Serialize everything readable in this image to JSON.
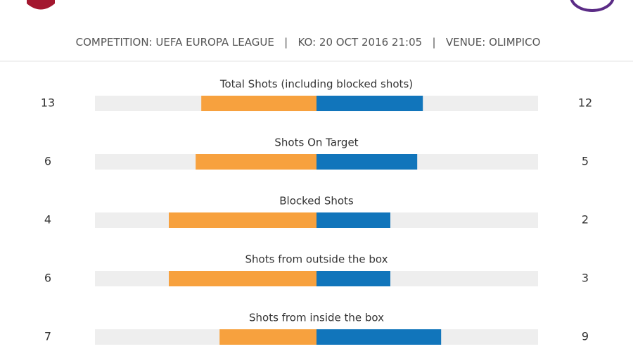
{
  "header": {
    "items": [
      {
        "label": "COMPETITION:",
        "value": "UEFA EUROPA LEAGUE"
      },
      {
        "label": "KO:",
        "value": "20 OCT 2016 21:05"
      },
      {
        "label": "VENUE:",
        "value": "OLIMPICO"
      }
    ]
  },
  "colors": {
    "home": "#f7a13e",
    "away": "#1175bb",
    "track": "#eeeeee"
  },
  "stats": [
    {
      "label": "Total Shots (including blocked shots)",
      "home": 13,
      "away": 12
    },
    {
      "label": "Shots On Target",
      "home": 6,
      "away": 5
    },
    {
      "label": "Blocked Shots",
      "home": 4,
      "away": 2
    },
    {
      "label": "Shots from outside the box",
      "home": 6,
      "away": 3
    },
    {
      "label": "Shots from inside the box",
      "home": 7,
      "away": 9
    }
  ]
}
